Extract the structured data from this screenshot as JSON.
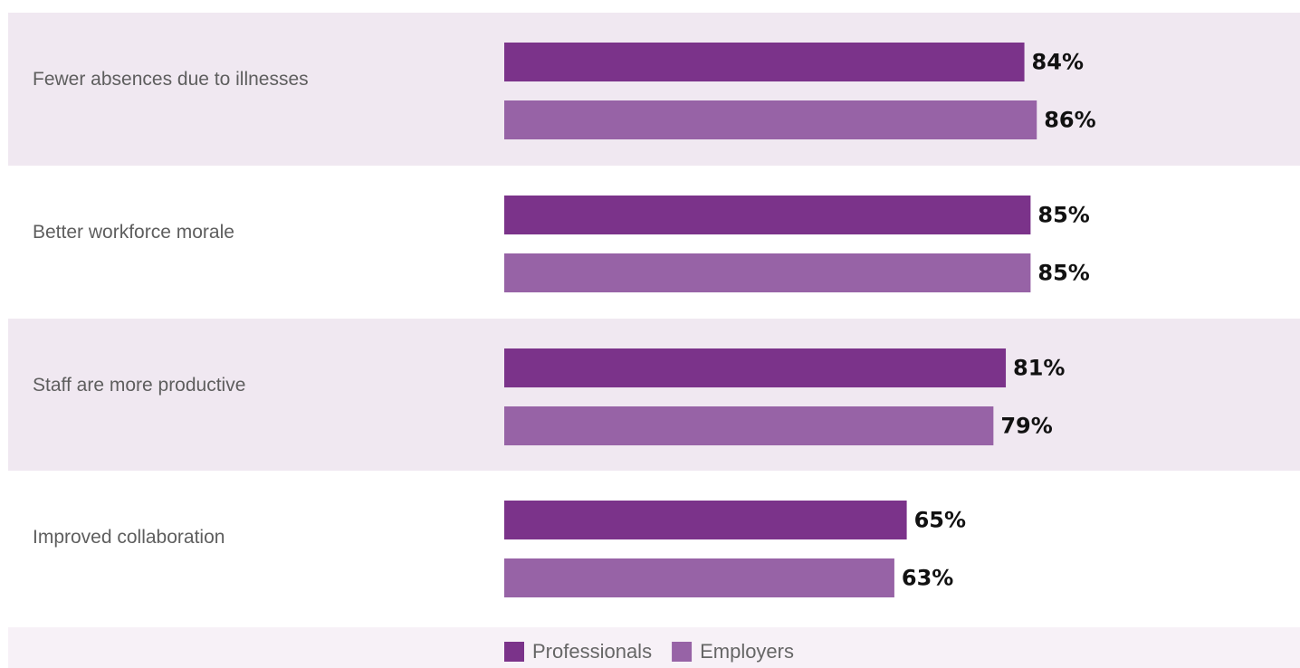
{
  "chart_data": {
    "type": "bar",
    "orientation": "horizontal",
    "categories": [
      "Fewer absences due to illnesses",
      "Better workforce morale",
      "Staff are more productive",
      "Improved collaboration"
    ],
    "series": [
      {
        "name": "Professionals",
        "color": "#7b338a",
        "values": [
          84,
          85,
          81,
          65
        ],
        "labels": [
          "84%",
          "85%",
          "81%",
          "65%"
        ]
      },
      {
        "name": "Employers",
        "color": "#9763a6",
        "values": [
          86,
          85,
          79,
          63
        ],
        "labels": [
          "86%",
          "85%",
          "79%",
          "63%"
        ]
      }
    ],
    "value_format": "percent",
    "xlim": [
      0,
      100
    ],
    "grid": false,
    "legend_position": "bottom"
  },
  "colors": {
    "band_shaded": "#f0e8f1",
    "band_plain": "#ffffff",
    "legend_bg": "#f7f1f7"
  }
}
